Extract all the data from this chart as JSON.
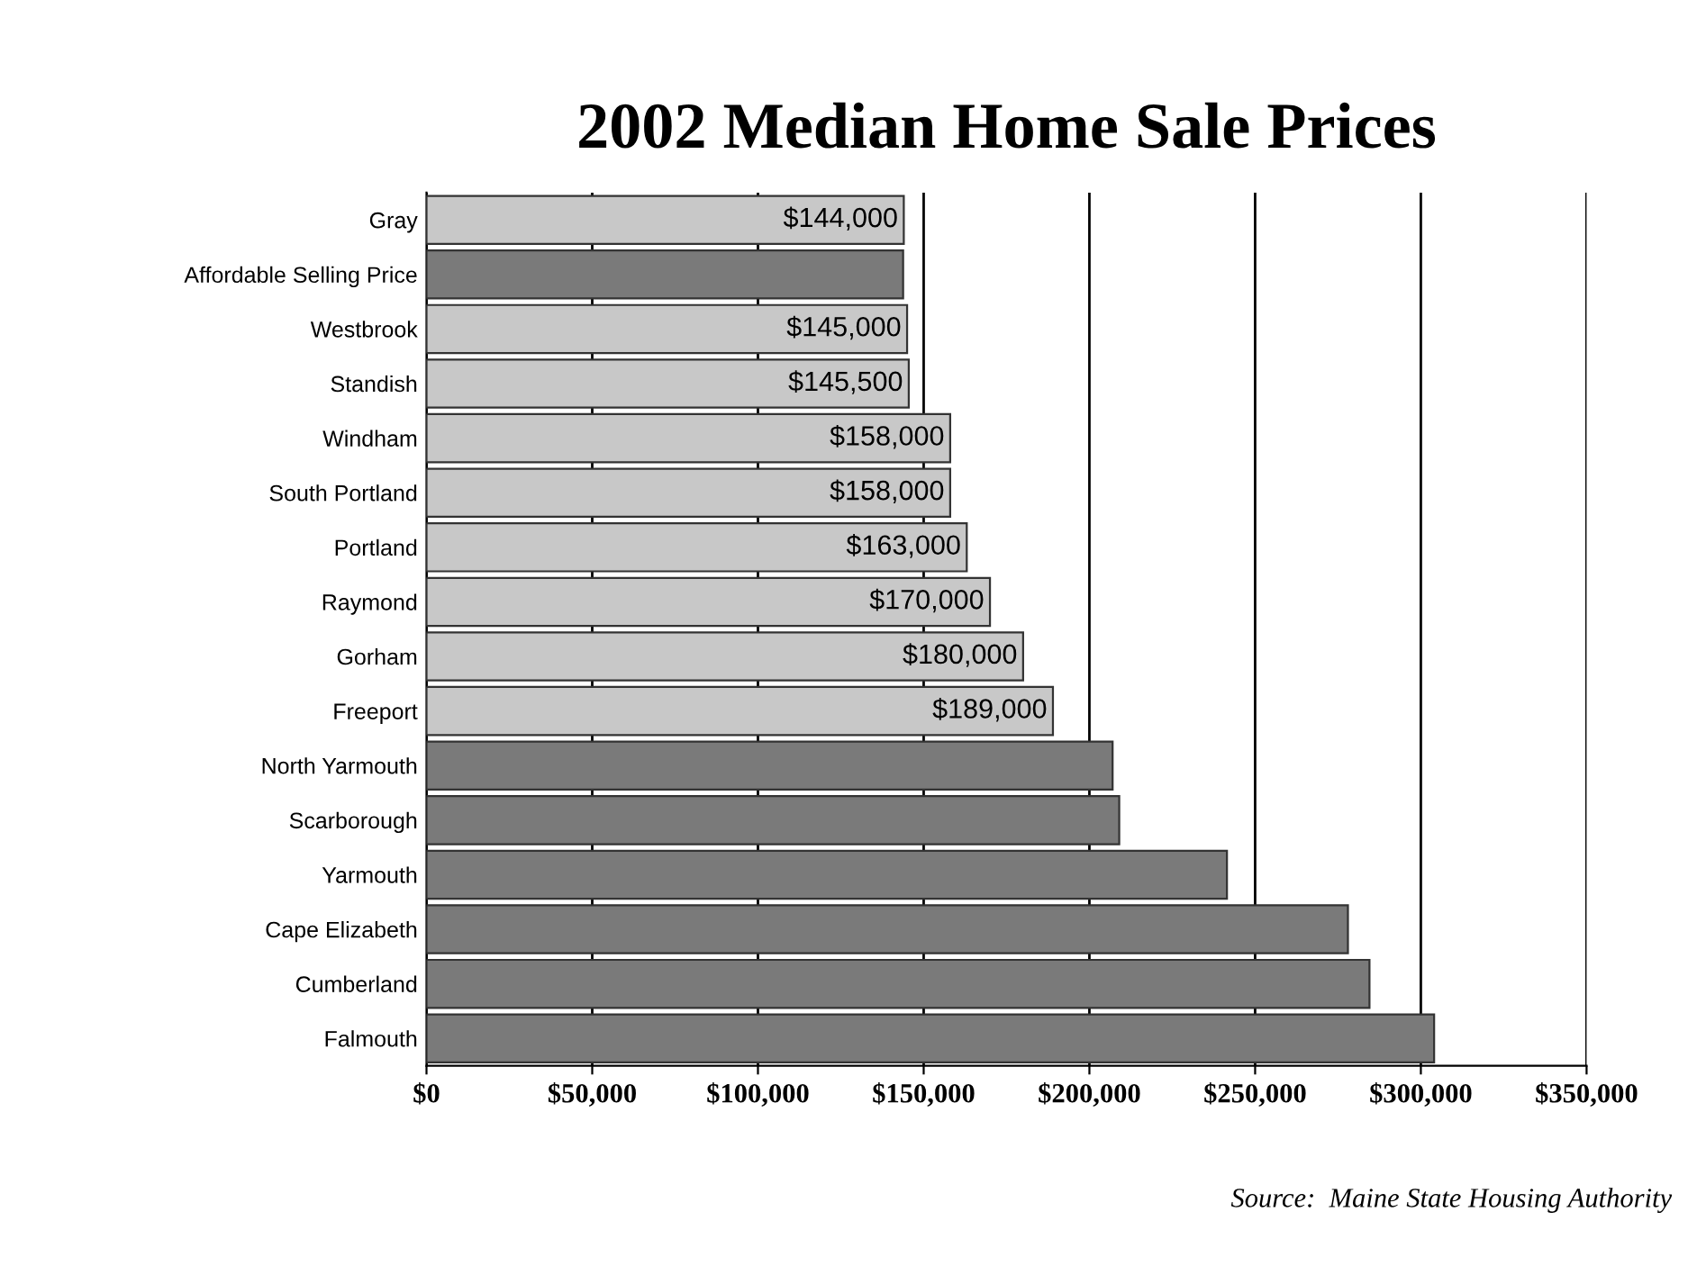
{
  "chart_data": {
    "type": "bar",
    "orientation": "horizontal",
    "title": "2002 Median Home Sale Prices",
    "categories": [
      "Gray",
      "Affordable Selling Price",
      "Westbrook",
      "Standish",
      "Windham",
      "South Portland",
      "Portland",
      "Raymond",
      "Gorham",
      "Freeport",
      "North Yarmouth",
      "Scarborough",
      "Yarmouth",
      "Cape Elizabeth",
      "Cumberland",
      "Falmouth"
    ],
    "values": [
      144000,
      143800,
      145000,
      145500,
      158000,
      158000,
      163000,
      170000,
      180000,
      189000,
      207000,
      209000,
      241500,
      278000,
      284500,
      304000
    ],
    "colors": [
      "#c8c8c8",
      "#7a7a7a",
      "#c8c8c8",
      "#c8c8c8",
      "#c8c8c8",
      "#c8c8c8",
      "#c8c8c8",
      "#c8c8c8",
      "#c8c8c8",
      "#c8c8c8",
      "#7a7a7a",
      "#7a7a7a",
      "#7a7a7a",
      "#7a7a7a",
      "#7a7a7a",
      "#7a7a7a"
    ],
    "value_labels": [
      "$144,000",
      null,
      "$145,000",
      "$145,500",
      "$158,000",
      "$158,000",
      "$163,000",
      "$170,000",
      "$180,000",
      "$189,000",
      null,
      null,
      null,
      null,
      null,
      null
    ],
    "xlim": [
      0,
      350000
    ],
    "xticks": [
      {
        "value": 0,
        "label": "$0"
      },
      {
        "value": 50000,
        "label": "$50,000"
      },
      {
        "value": 100000,
        "label": "$100,000"
      },
      {
        "value": 150000,
        "label": "$150,000"
      },
      {
        "value": 200000,
        "label": "$200,000"
      },
      {
        "value": 250000,
        "label": "$250,000"
      },
      {
        "value": 300000,
        "label": "$300,000"
      },
      {
        "value": 350000,
        "label": "$350,000"
      }
    ],
    "grid": "x",
    "legend": false,
    "annotations": [
      "Source:  Maine State Housing Authority"
    ]
  }
}
